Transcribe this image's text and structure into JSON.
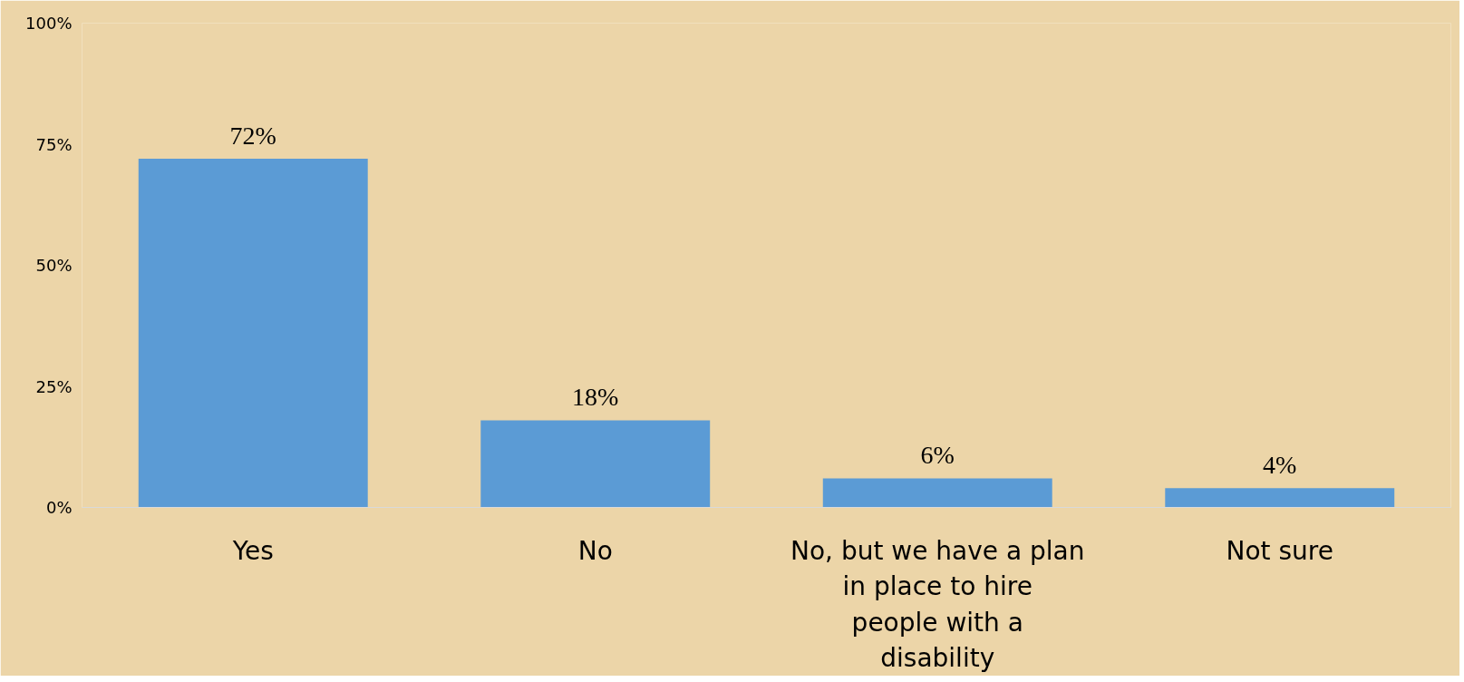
{
  "chart_data": {
    "type": "bar",
    "categories": [
      "Yes",
      "No",
      "No, but we have a plan in place to hire people with a disability",
      "Not sure"
    ],
    "values": [
      72,
      18,
      6,
      4
    ],
    "value_labels": [
      "72%",
      "18%",
      "6%",
      "4%"
    ],
    "color": "#5b9bd5",
    "ylim": [
      0,
      100
    ],
    "yticks": [
      {
        "value": 0,
        "label": "0%"
      },
      {
        "value": 25,
        "label": "25%"
      },
      {
        "value": 50,
        "label": "50%"
      },
      {
        "value": 75,
        "label": "75%"
      },
      {
        "value": 100,
        "label": "100%"
      }
    ],
    "grid": false
  }
}
